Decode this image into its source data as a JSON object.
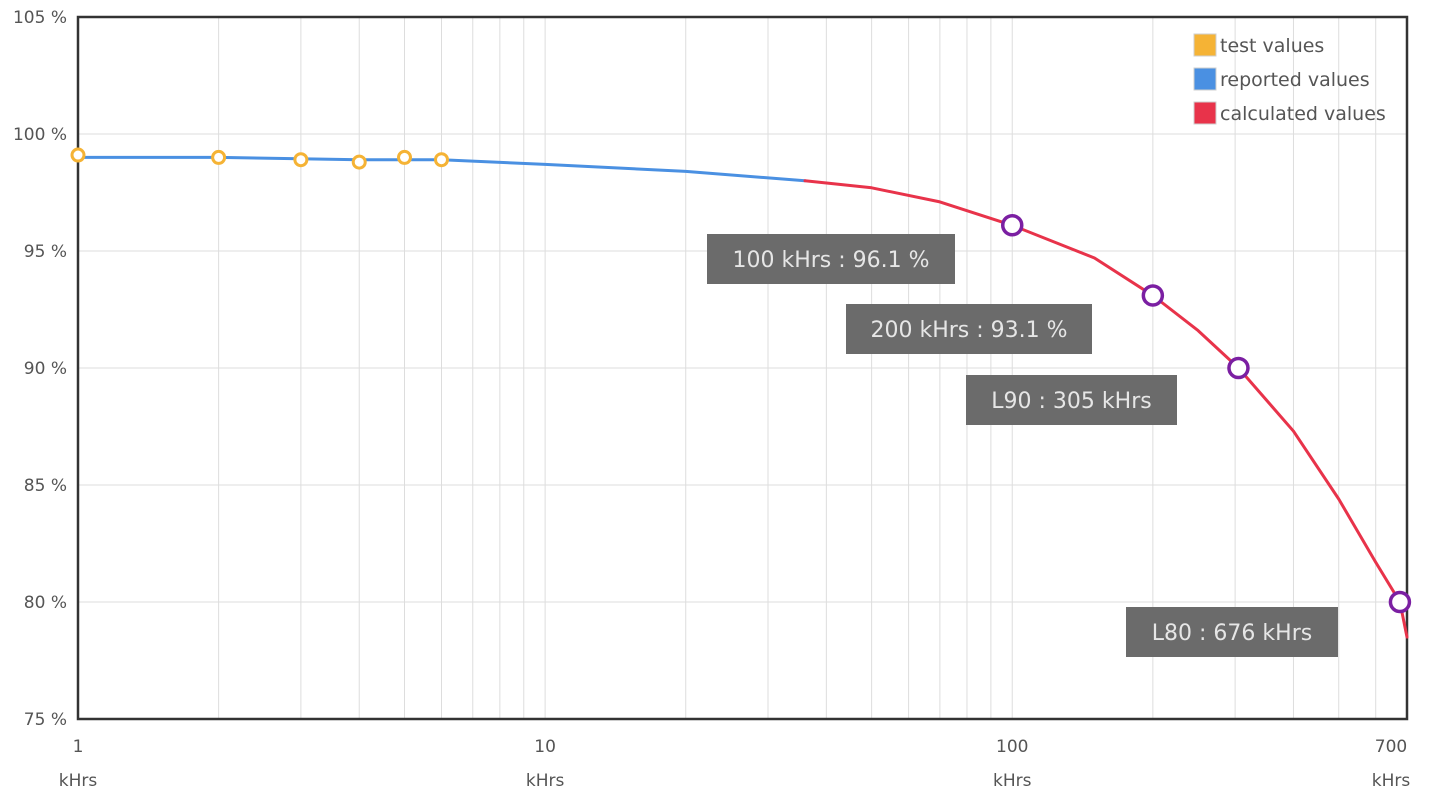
{
  "chart_data": {
    "type": "line",
    "x_scale": "log",
    "x_unit": "kHrs",
    "xlim": [
      1,
      700
    ],
    "ylim": [
      75,
      105
    ],
    "grid": true,
    "legend_position": "top-right",
    "x_ticks": [
      {
        "value": 1,
        "label": "1"
      },
      {
        "value": 10,
        "label": "10"
      },
      {
        "value": 100,
        "label": "100"
      },
      {
        "value": 700,
        "label": "700"
      }
    ],
    "y_ticks": [
      {
        "value": 75,
        "label": "75 %"
      },
      {
        "value": 80,
        "label": "80 %"
      },
      {
        "value": 85,
        "label": "85 %"
      },
      {
        "value": 90,
        "label": "90 %"
      },
      {
        "value": 95,
        "label": "95 %"
      },
      {
        "value": 100,
        "label": "100 %"
      },
      {
        "value": 105,
        "label": "105 %"
      }
    ],
    "legend": [
      {
        "key": "test",
        "label": "test values",
        "color": "#f5b335"
      },
      {
        "key": "reported",
        "label": "reported values",
        "color": "#4a90e2"
      },
      {
        "key": "calculated",
        "label": "calculated values",
        "color": "#e8334a"
      }
    ],
    "series": [
      {
        "key": "test",
        "points": [
          {
            "x": 1,
            "y": 99.1
          },
          {
            "x": 2,
            "y": 99.0
          },
          {
            "x": 3,
            "y": 98.9
          },
          {
            "x": 4,
            "y": 98.8
          },
          {
            "x": 5,
            "y": 99.0
          },
          {
            "x": 6,
            "y": 98.9
          }
        ]
      },
      {
        "key": "reported",
        "points": [
          {
            "x": 1,
            "y": 99.0
          },
          {
            "x": 2,
            "y": 99.0
          },
          {
            "x": 4,
            "y": 98.9
          },
          {
            "x": 6,
            "y": 98.9
          },
          {
            "x": 10,
            "y": 98.7
          },
          {
            "x": 20,
            "y": 98.4
          },
          {
            "x": 36,
            "y": 98.0
          }
        ]
      },
      {
        "key": "calculated",
        "points": [
          {
            "x": 36,
            "y": 98.0
          },
          {
            "x": 50,
            "y": 97.7
          },
          {
            "x": 70,
            "y": 97.1
          },
          {
            "x": 100,
            "y": 96.1
          },
          {
            "x": 150,
            "y": 94.7
          },
          {
            "x": 200,
            "y": 93.1
          },
          {
            "x": 250,
            "y": 91.6
          },
          {
            "x": 305,
            "y": 90.0
          },
          {
            "x": 400,
            "y": 87.3
          },
          {
            "x": 500,
            "y": 84.4
          },
          {
            "x": 600,
            "y": 81.7
          },
          {
            "x": 676,
            "y": 80.0
          },
          {
            "x": 700,
            "y": 78.5
          }
        ]
      }
    ],
    "markers": [
      {
        "x": 100,
        "y": 96.1
      },
      {
        "x": 200,
        "y": 93.1
      },
      {
        "x": 305,
        "y": 90.0
      },
      {
        "x": 676,
        "y": 80.0
      }
    ],
    "callouts": [
      {
        "text": "100 kHrs : 96.1 %"
      },
      {
        "text": "200 kHrs : 93.1 %"
      },
      {
        "text": "L90 : 305 kHrs"
      },
      {
        "text": "L80 : 676 kHrs"
      }
    ],
    "colors": {
      "marker": "#7b1fa2",
      "callout_bg": "#6b6b6b",
      "grid": "#dddddd",
      "axis": "#333333"
    }
  }
}
